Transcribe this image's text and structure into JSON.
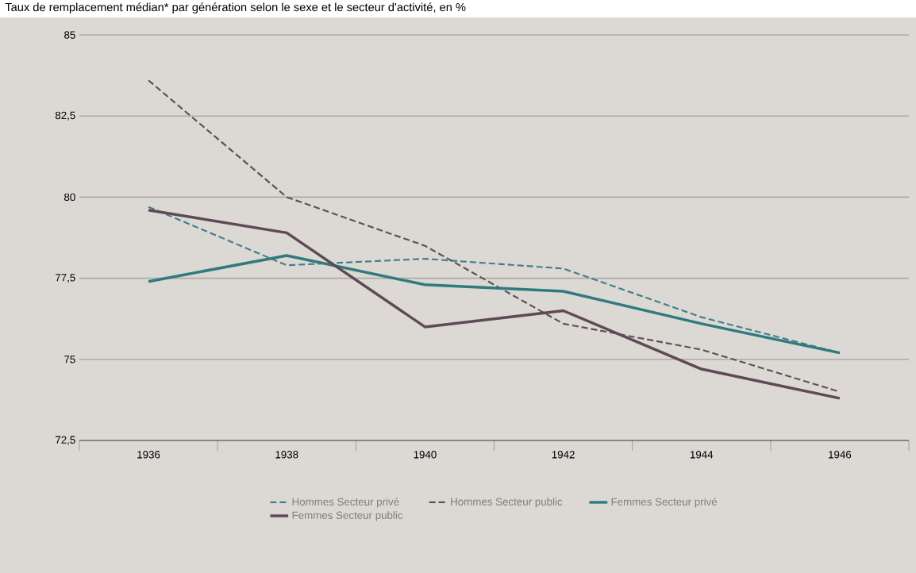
{
  "chart_data": {
    "type": "line",
    "title": "Taux de remplacement médian* par génération selon le sexe et le secteur d'activité, en %",
    "categories": [
      "1936",
      "1938",
      "1940",
      "1942",
      "1944",
      "1946"
    ],
    "series": [
      {
        "name": "Hommes Secteur privé",
        "color": "#3f7f8c",
        "line_style": "dashed",
        "values": [
          79.7,
          77.9,
          78.1,
          77.8,
          76.3,
          75.2
        ]
      },
      {
        "name": "Hommes Secteur public",
        "color": "#5a5254",
        "line_style": "dashed",
        "values": [
          83.6,
          80.0,
          78.5,
          76.1,
          75.3,
          74.0
        ]
      },
      {
        "name": "Femmes Secteur privé",
        "color": "#2f7b7f",
        "line_style": "solid",
        "values": [
          77.4,
          78.2,
          77.3,
          77.1,
          76.1,
          75.2
        ]
      },
      {
        "name": "Femmes Secteur public",
        "color": "#5e4a55",
        "line_style": "solid",
        "values": [
          79.6,
          78.9,
          76.0,
          76.5,
          74.7,
          73.8
        ]
      }
    ],
    "ylim": [
      72.5,
      85
    ],
    "yticks": [
      {
        "value": 72.5,
        "label": "72,5"
      },
      75,
      {
        "value": 77.5,
        "label": "77,5"
      },
      80,
      {
        "value": 82.5,
        "label": "82,5"
      },
      85
    ],
    "grid": "y",
    "legend": "bottom"
  }
}
